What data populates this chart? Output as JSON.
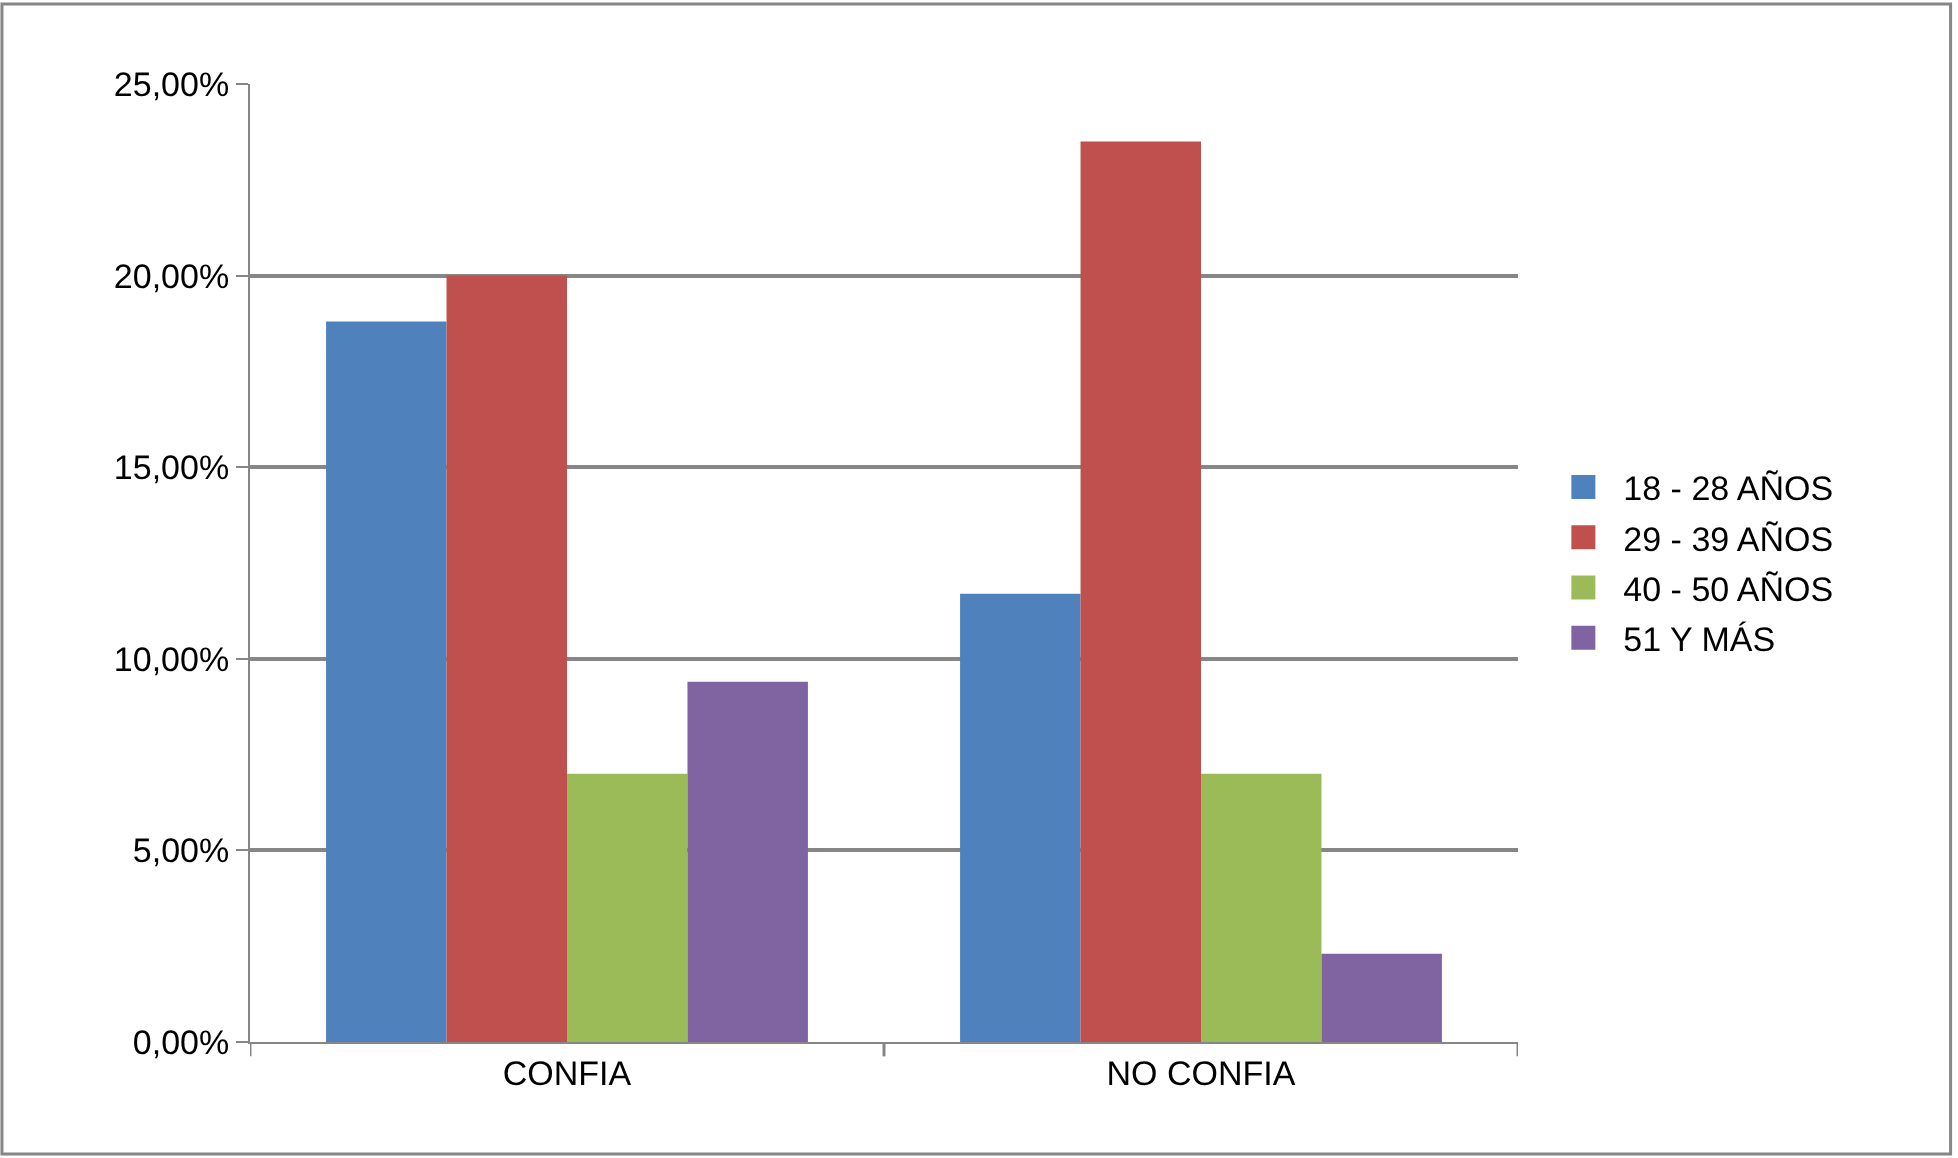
{
  "chart_data": {
    "type": "bar",
    "categories": [
      "CONFIA",
      "NO CONFIA"
    ],
    "series": [
      {
        "name": "18 - 28 AÑOS",
        "color": "#4f81bd",
        "values": [
          18.8,
          11.7
        ]
      },
      {
        "name": "29 - 39 AÑOS",
        "color": "#c0504d",
        "values": [
          20.0,
          23.5
        ]
      },
      {
        "name": "40 - 50 AÑOS",
        "color": "#9bbb59",
        "values": [
          7.0,
          7.0
        ]
      },
      {
        "name": "51 Y MÁS",
        "color": "#8064a2",
        "values": [
          9.4,
          2.3
        ]
      }
    ],
    "ylim": [
      0,
      25
    ],
    "yticks": [
      {
        "value": 0,
        "label": "0,00%"
      },
      {
        "value": 5,
        "label": "5,00%"
      },
      {
        "value": 10,
        "label": "10,00%"
      },
      {
        "value": 15,
        "label": "15,00%"
      },
      {
        "value": 20,
        "label": "20,00%"
      },
      {
        "value": 25,
        "label": "25,00%"
      }
    ],
    "grid": "y",
    "legend": "right"
  }
}
